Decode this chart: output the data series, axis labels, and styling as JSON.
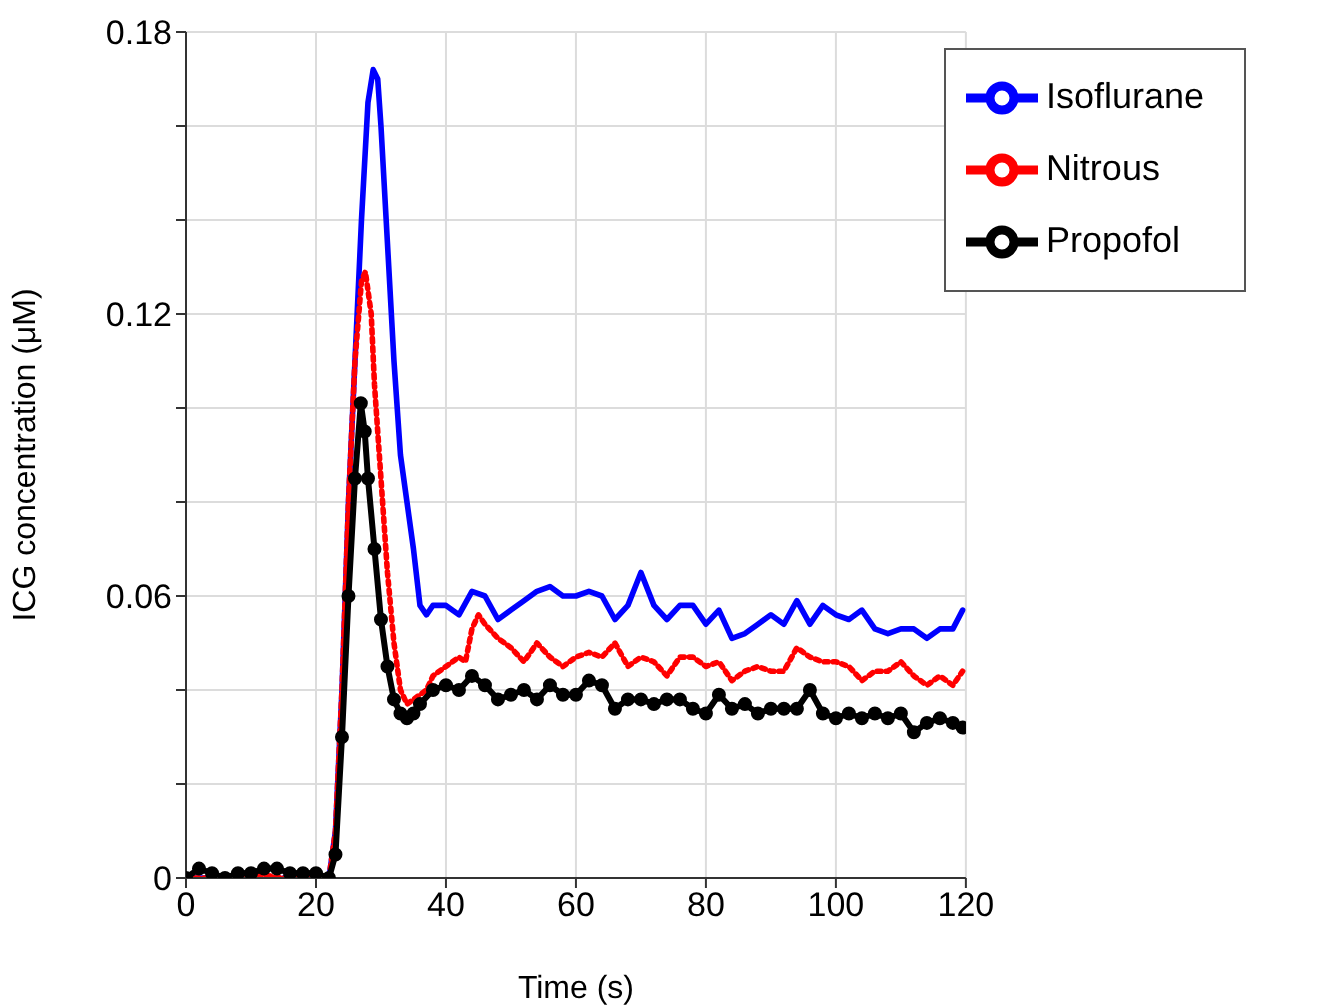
{
  "chart_data": {
    "type": "line",
    "xlabel": "Time (s)",
    "ylabel": "ICG concentration (μM)",
    "xlim": [
      0,
      120
    ],
    "xticks": [
      0,
      20,
      40,
      60,
      80,
      100,
      120
    ],
    "ylim": [
      0,
      0.18
    ],
    "yticks": [
      0,
      {
        "value": 0.02,
        "label": null
      },
      {
        "value": 0.04,
        "label": null
      },
      0.06,
      {
        "value": 0.08,
        "label": null
      },
      {
        "value": 0.1,
        "label": null
      },
      0.12,
      {
        "value": 0.14,
        "label": null
      },
      {
        "value": 0.16,
        "label": null
      },
      0.18
    ],
    "grid": true,
    "legend": "top right",
    "series": [
      {
        "name": "Isoflurane",
        "color": "#0000ff",
        "line_style": "solid",
        "marker": "none",
        "x": [
          0,
          5,
          10,
          15,
          20,
          22,
          23,
          24,
          25,
          26,
          27,
          28,
          28.8,
          29.5,
          30,
          31,
          32,
          33,
          34,
          35,
          36,
          37,
          38,
          40,
          42,
          44,
          46,
          48,
          50,
          52,
          54,
          56,
          58,
          60,
          62,
          64,
          66,
          68,
          70,
          72,
          74,
          76,
          78,
          80,
          82,
          84,
          86,
          88,
          90,
          92,
          94,
          96,
          98,
          100,
          102,
          104,
          106,
          108,
          110,
          112,
          114,
          116,
          118,
          119.5
        ],
        "values": [
          0,
          0,
          null,
          0,
          0,
          0,
          0.01,
          0.04,
          0.08,
          0.11,
          0.14,
          0.165,
          0.172,
          0.17,
          0.16,
          0.135,
          0.11,
          0.09,
          0.08,
          0.07,
          0.058,
          0.056,
          0.058,
          0.058,
          0.056,
          0.061,
          0.06,
          0.055,
          0.057,
          0.059,
          0.061,
          0.062,
          0.06,
          0.06,
          0.061,
          0.06,
          0.055,
          0.058,
          0.065,
          0.058,
          0.055,
          0.058,
          0.058,
          0.054,
          0.057,
          0.051,
          0.052,
          0.054,
          0.056,
          0.054,
          0.059,
          0.054,
          0.058,
          0.056,
          0.055,
          0.057,
          0.053,
          0.052,
          0.053,
          0.053,
          0.051,
          0.053,
          0.053,
          0.057
        ]
      },
      {
        "name": "Nitrous",
        "color": "#ff0000",
        "line_style": "dotted",
        "marker": "none",
        "x": [
          0,
          5,
          10,
          15,
          20,
          22,
          23,
          24,
          25,
          26,
          27,
          27.6,
          28.5,
          29,
          30,
          31,
          32,
          33,
          34,
          35,
          37,
          38,
          40,
          42,
          43,
          44,
          45,
          46,
          48,
          50,
          52,
          54,
          56,
          58,
          60,
          62,
          64,
          66,
          68,
          70,
          72,
          74,
          76,
          78,
          80,
          82,
          84,
          86,
          88,
          90,
          92,
          94,
          96,
          98,
          100,
          102,
          104,
          106,
          108,
          110,
          112,
          114,
          116,
          118,
          119.5
        ],
        "values": [
          0,
          0,
          0.001,
          0,
          0,
          0,
          0.01,
          0.04,
          0.08,
          0.11,
          0.127,
          0.129,
          0.12,
          0.105,
          0.085,
          0.065,
          0.05,
          0.04,
          0.037,
          0.038,
          0.04,
          0.043,
          0.045,
          0.047,
          0.046,
          0.053,
          0.056,
          0.054,
          0.051,
          0.049,
          0.046,
          0.05,
          0.047,
          0.045,
          0.047,
          0.048,
          0.047,
          0.05,
          0.045,
          0.047,
          0.046,
          0.043,
          0.047,
          0.047,
          0.045,
          0.046,
          0.042,
          0.044,
          0.045,
          0.044,
          0.044,
          0.049,
          0.047,
          0.046,
          0.046,
          0.045,
          0.042,
          0.044,
          0.044,
          0.046,
          0.043,
          0.041,
          0.043,
          0.041,
          0.044
        ]
      },
      {
        "name": "Propofol",
        "color": "#000000",
        "line_style": "solid",
        "marker": "circle",
        "x": [
          0,
          2,
          4,
          6,
          8,
          10,
          12,
          14,
          16,
          18,
          20,
          22,
          23,
          24,
          25,
          26,
          26.9,
          27.5,
          28,
          29,
          30,
          31,
          32,
          33,
          34,
          35,
          36,
          38,
          40,
          42,
          44,
          46,
          48,
          50,
          52,
          54,
          56,
          58,
          60,
          62,
          64,
          66,
          68,
          70,
          72,
          74,
          76,
          78,
          80,
          82,
          84,
          86,
          88,
          90,
          92,
          94,
          96,
          98,
          100,
          102,
          104,
          106,
          108,
          110,
          112,
          114,
          116,
          118,
          119.5
        ],
        "values": [
          0,
          0.002,
          0.001,
          0,
          0.001,
          0.001,
          0.002,
          0.002,
          0.001,
          0.001,
          0.001,
          0,
          0.005,
          0.03,
          0.06,
          0.085,
          0.101,
          0.095,
          0.085,
          0.07,
          0.055,
          0.045,
          0.038,
          0.035,
          0.034,
          0.035,
          0.037,
          0.04,
          0.041,
          0.04,
          0.043,
          0.041,
          0.038,
          0.039,
          0.04,
          0.038,
          0.041,
          0.039,
          0.039,
          0.042,
          0.041,
          0.036,
          0.038,
          0.038,
          0.037,
          0.038,
          0.038,
          0.036,
          0.035,
          0.039,
          0.036,
          0.037,
          0.035,
          0.036,
          0.036,
          0.036,
          0.04,
          0.035,
          0.034,
          0.035,
          0.034,
          0.035,
          0.034,
          0.035,
          0.031,
          0.033,
          0.034,
          0.033,
          0.032
        ]
      }
    ]
  }
}
